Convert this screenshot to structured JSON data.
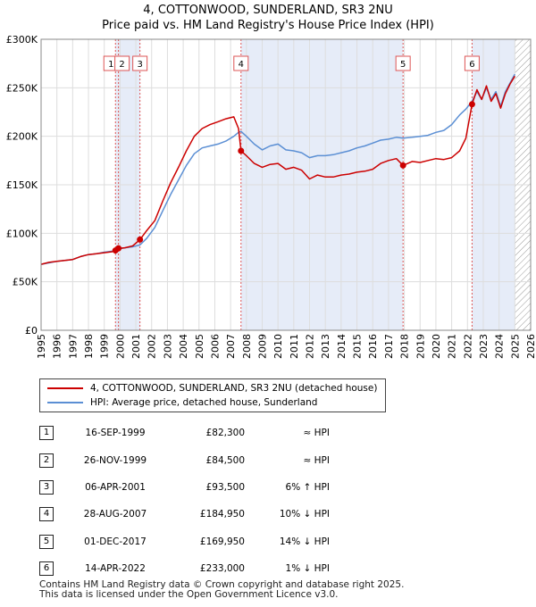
{
  "title_line1": "4, COTTONWOOD, SUNDERLAND, SR3 2NU",
  "title_line2": "Price paid vs. HM Land Registry's House Price Index (HPI)",
  "colors": {
    "price_line": "#cc0000",
    "hpi_line": "#5b8fd4",
    "shade": "#e6ecf8",
    "vline": "#dd5555",
    "grid": "#dddddd"
  },
  "legend": {
    "price_label": "4, COTTONWOOD, SUNDERLAND, SR3 2NU (detached house)",
    "hpi_label": "HPI: Average price, detached house, Sunderland"
  },
  "sales": [
    {
      "num": "1",
      "date": "16-SEP-1999",
      "price": "£82,300",
      "hpi": "≈ HPI"
    },
    {
      "num": "2",
      "date": "26-NOV-1999",
      "price": "£84,500",
      "hpi": "≈ HPI"
    },
    {
      "num": "3",
      "date": "06-APR-2001",
      "price": "£93,500",
      "hpi": "6% ↑ HPI"
    },
    {
      "num": "4",
      "date": "28-AUG-2007",
      "price": "£184,950",
      "hpi": "10% ↓ HPI"
    },
    {
      "num": "5",
      "date": "01-DEC-2017",
      "price": "£169,950",
      "hpi": "14% ↓ HPI"
    },
    {
      "num": "6",
      "date": "14-APR-2022",
      "price": "£233,000",
      "hpi": "1% ↓ HPI"
    }
  ],
  "footer_line1": "Contains HM Land Registry data © Crown copyright and database right 2025.",
  "footer_line2": "This data is licensed under the Open Government Licence v3.0.",
  "chart_data": {
    "type": "line",
    "title": "4, COTTONWOOD, SUNDERLAND, SR3 2NU",
    "subtitle": "Price paid vs. HM Land Registry's House Price Index (HPI)",
    "xlim": [
      1995,
      2026
    ],
    "ylim": [
      0,
      300000
    ],
    "x_ticks": [
      1995,
      1996,
      1997,
      1998,
      1999,
      2000,
      2001,
      2002,
      2003,
      2004,
      2005,
      2006,
      2007,
      2008,
      2009,
      2010,
      2011,
      2012,
      2013,
      2014,
      2015,
      2016,
      2017,
      2018,
      2019,
      2020,
      2021,
      2022,
      2023,
      2024,
      2025,
      2026
    ],
    "y_ticks": [
      0,
      50000,
      100000,
      150000,
      200000,
      250000,
      300000
    ],
    "y_tick_labels": [
      "£0",
      "£50K",
      "£100K",
      "£150K",
      "£200K",
      "£250K",
      "£300K"
    ],
    "grid": true,
    "legend_position": "bottom",
    "shaded_intervals": [
      [
        1999.71,
        2001.26
      ],
      [
        2007.66,
        2017.92
      ],
      [
        2022.29,
        2025.0
      ]
    ],
    "hatched_after": 2025.0,
    "markers": [
      {
        "label": "1",
        "x": 1999.71,
        "y": 82300
      },
      {
        "label": "2",
        "x": 1999.9,
        "y": 84500
      },
      {
        "label": "3",
        "x": 2001.26,
        "y": 93500
      },
      {
        "label": "4",
        "x": 2007.66,
        "y": 184950
      },
      {
        "label": "5",
        "x": 2017.92,
        "y": 169950
      },
      {
        "label": "6",
        "x": 2022.29,
        "y": 233000
      }
    ],
    "series": [
      {
        "name": "4, COTTONWOOD, SUNDERLAND, SR3 2NU (detached house)",
        "x": [
          1995.0,
          1995.5,
          1996.0,
          1996.5,
          1997.0,
          1997.5,
          1998.0,
          1998.5,
          1999.0,
          1999.5,
          1999.71,
          1999.9,
          2000.3,
          2000.8,
          2001.26,
          2001.7,
          2002.2,
          2002.7,
          2003.2,
          2003.7,
          2004.2,
          2004.7,
          2005.2,
          2005.7,
          2006.2,
          2006.7,
          2007.2,
          2007.5,
          2007.66,
          2008.0,
          2008.5,
          2009.0,
          2009.5,
          2010.0,
          2010.5,
          2011.0,
          2011.5,
          2012.0,
          2012.5,
          2013.0,
          2013.5,
          2014.0,
          2014.5,
          2015.0,
          2015.5,
          2016.0,
          2016.5,
          2017.0,
          2017.5,
          2017.92,
          2018.5,
          2019.0,
          2019.5,
          2020.0,
          2020.5,
          2021.0,
          2021.5,
          2021.9,
          2022.29,
          2022.6,
          2022.9,
          2023.2,
          2023.5,
          2023.8,
          2024.1,
          2024.4,
          2024.7,
          2025.0
        ],
        "values": [
          68000,
          70000,
          71000,
          72000,
          73000,
          76000,
          78000,
          79000,
          80000,
          81000,
          82300,
          84500,
          85000,
          87000,
          93500,
          103000,
          113000,
          133000,
          152000,
          168000,
          185000,
          200000,
          208000,
          212000,
          215000,
          218000,
          220000,
          208000,
          184950,
          180000,
          172000,
          168000,
          171000,
          172000,
          166000,
          168000,
          165000,
          156000,
          160000,
          158000,
          158000,
          160000,
          161000,
          163000,
          164000,
          166000,
          172000,
          175000,
          177000,
          169950,
          174000,
          173000,
          175000,
          177000,
          176000,
          178000,
          185000,
          198000,
          233000,
          248000,
          238000,
          252000,
          236000,
          244000,
          229000,
          244000,
          254000,
          262000
        ]
      },
      {
        "name": "HPI: Average price, detached house, Sunderland",
        "x": [
          1995.0,
          1995.5,
          1996.0,
          1996.5,
          1997.0,
          1997.5,
          1998.0,
          1998.5,
          1999.0,
          1999.5,
          1999.71,
          1999.9,
          2000.3,
          2000.8,
          2001.26,
          2001.7,
          2002.2,
          2002.7,
          2003.2,
          2003.7,
          2004.2,
          2004.7,
          2005.2,
          2005.7,
          2006.2,
          2006.7,
          2007.2,
          2007.5,
          2007.66,
          2008.0,
          2008.5,
          2009.0,
          2009.5,
          2010.0,
          2010.5,
          2011.0,
          2011.5,
          2012.0,
          2012.5,
          2013.0,
          2013.5,
          2014.0,
          2014.5,
          2015.0,
          2015.5,
          2016.0,
          2016.5,
          2017.0,
          2017.5,
          2017.92,
          2018.5,
          2019.0,
          2019.5,
          2020.0,
          2020.5,
          2021.0,
          2021.5,
          2021.9,
          2022.29,
          2022.6,
          2022.9,
          2023.2,
          2023.5,
          2023.8,
          2024.1,
          2024.4,
          2024.7,
          2025.0
        ],
        "values": [
          68000,
          69500,
          71000,
          72000,
          73000,
          76000,
          78000,
          79000,
          80500,
          81500,
          82500,
          84000,
          85000,
          86000,
          88000,
          95000,
          106000,
          123000,
          140000,
          155000,
          170000,
          182000,
          188000,
          190000,
          192000,
          195000,
          200000,
          204000,
          205000,
          200000,
          192000,
          186000,
          190000,
          192000,
          186000,
          185000,
          183000,
          178000,
          180000,
          180000,
          181000,
          183000,
          185000,
          188000,
          190000,
          193000,
          196000,
          197000,
          199000,
          198000,
          199000,
          200000,
          201000,
          204000,
          206000,
          212000,
          222000,
          228000,
          236000,
          246000,
          238000,
          250000,
          238000,
          246000,
          231000,
          246000,
          255000,
          264000
        ]
      }
    ]
  }
}
